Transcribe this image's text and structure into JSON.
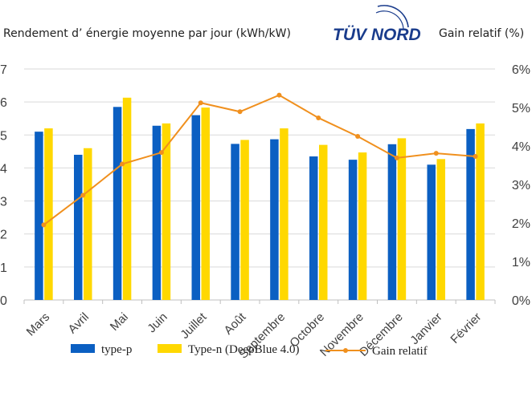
{
  "header": {
    "left_title": "Rendement d’  énergie moyenne par jour  (kWh/kW)",
    "right_title": "Gain relatif   (%)",
    "logo_text": "TÜV NORD"
  },
  "colors": {
    "type_p": "#0b5fc2",
    "type_n": "#ffd800",
    "gain": "#f0901e",
    "grid": "#d9d9d9",
    "axis": "#bfbfbf"
  },
  "chart_data": {
    "type": "bar",
    "categories": [
      "Mars",
      "Avril",
      "Mai",
      "Juin",
      "Juillet",
      "Août",
      "Septembre",
      "Octobre",
      "Novembre",
      "Décembre",
      "Janvier",
      "Février"
    ],
    "series": [
      {
        "name": "type-p",
        "type": "bar",
        "axis": "left",
        "values": [
          5.1,
          4.4,
          5.85,
          5.28,
          5.6,
          4.73,
          4.87,
          4.35,
          4.25,
          4.72,
          4.1,
          5.18
        ]
      },
      {
        "name": "Type-n (DeepBlue 4.0)",
        "type": "bar",
        "axis": "left",
        "values": [
          5.2,
          4.6,
          6.13,
          5.35,
          5.83,
          4.85,
          5.2,
          4.7,
          4.47,
          4.9,
          4.27,
          5.35
        ]
      },
      {
        "name": "Gain relatif",
        "type": "line",
        "axis": "right",
        "unit": "%",
        "values": [
          1.95,
          2.72,
          3.53,
          3.83,
          5.12,
          4.89,
          5.32,
          4.73,
          4.25,
          3.69,
          3.81,
          3.73
        ]
      }
    ],
    "ylim_left": [
      0,
      7
    ],
    "yticks_left": [
      "0",
      "1",
      "2",
      "3",
      "4",
      "5",
      "6",
      "7"
    ],
    "ylim_right": [
      0,
      6
    ],
    "yticks_right": [
      "0%",
      "1%",
      "2%",
      "3%",
      "4%",
      "5%",
      "6%"
    ],
    "grid": true,
    "legend_position": "bottom"
  }
}
